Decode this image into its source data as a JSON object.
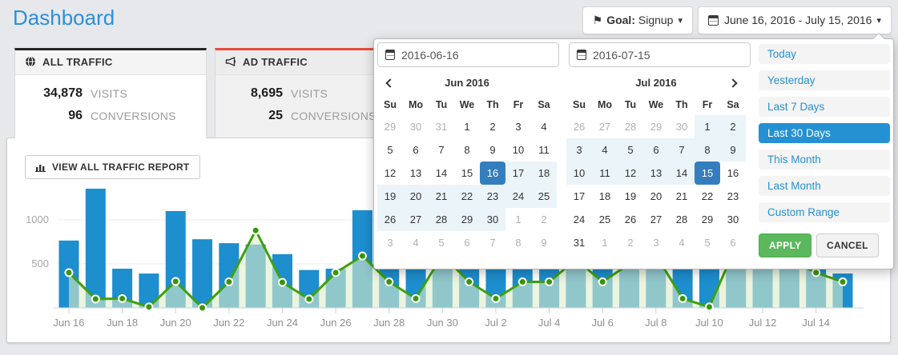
{
  "page": {
    "title": "Dashboard"
  },
  "header": {
    "goal_button": {
      "icon": "flag-icon",
      "label_prefix": "Goal:",
      "value": "Signup"
    },
    "date_range_button": {
      "icon": "calendar-icon",
      "label": "June 16, 2016 - July 15, 2016"
    }
  },
  "cards": [
    {
      "title": "ALL TRAFFIC",
      "icon": "globe-icon",
      "accent_color": "#262626",
      "stats": [
        {
          "value": "34,878",
          "label": "VISITS"
        },
        {
          "value": "96",
          "label": "CONVERSIONS"
        }
      ]
    },
    {
      "title": "AD TRAFFIC",
      "icon": "megaphone-icon",
      "accent_color": "#e74c3c",
      "stats": [
        {
          "value": "8,695",
          "label": "VISITS"
        },
        {
          "value": "25",
          "label": "CONVERSIONS"
        }
      ]
    }
  ],
  "report_button": {
    "icon": "bar-chart-icon",
    "label": "VIEW ALL TRAFFIC REPORT"
  },
  "chart_data": {
    "type": "bar+line",
    "x": [
      "Jun 16",
      "Jun 17",
      "Jun 18",
      "Jun 19",
      "Jun 20",
      "Jun 21",
      "Jun 22",
      "Jun 23",
      "Jun 24",
      "Jun 25",
      "Jun 26",
      "Jun 27",
      "Jun 28",
      "Jun 29",
      "Jun 30",
      "Jul 1",
      "Jul 2",
      "Jul 3",
      "Jul 4",
      "Jul 5",
      "Jul 6",
      "Jul 7",
      "Jul 8",
      "Jul 9",
      "Jul 10",
      "Jul 11",
      "Jul 12",
      "Jul 13",
      "Jul 14",
      "Jul 15"
    ],
    "xtick_every": 2,
    "yticks": [
      500,
      1000
    ],
    "ylim": [
      0,
      1450
    ],
    "grid": true,
    "legend": "none",
    "series": [
      {
        "name": "visits",
        "type": "bar",
        "color": "#1d8ece",
        "values": [
          765,
          1355,
          445,
          390,
          1100,
          780,
          735,
          720,
          610,
          430,
          445,
          1110,
          800,
          650,
          900,
          750,
          850,
          700,
          950,
          820,
          620,
          860,
          760,
          900,
          720,
          780,
          830,
          880,
          800,
          390
        ]
      },
      {
        "name": "conversions",
        "type": "line",
        "color": "#3fa00e",
        "area_color": "rgba(222,237,202,0.6)",
        "marker": "circle",
        "values": [
          400,
          100,
          105,
          10,
          300,
          0,
          295,
          880,
          290,
          100,
          400,
          590,
          295,
          105,
          600,
          295,
          105,
          295,
          295,
          550,
          295,
          500,
          600,
          105,
          10,
          700,
          650,
          550,
          400,
          295
        ]
      }
    ]
  },
  "datepicker": {
    "start_input": "2016-06-16",
    "end_input": "2016-07-15",
    "weekdays": [
      "Su",
      "Mo",
      "Tu",
      "We",
      "Th",
      "Fr",
      "Sa"
    ],
    "calendars": [
      {
        "month": "Jun 2016",
        "nav": "prev",
        "days": [
          "29|m",
          "30|m",
          "31|m",
          "1",
          "2",
          "3",
          "4",
          "5",
          "6",
          "7",
          "8",
          "9",
          "10",
          "11",
          "12",
          "13",
          "14",
          "15",
          "16|s",
          "17|r",
          "18|r",
          "19|r",
          "20|r",
          "21|r",
          "22|r",
          "23|r",
          "24|r",
          "25|r",
          "26|r",
          "27|r",
          "28|r",
          "29|r",
          "30|r",
          "1|m",
          "2|m",
          "3|m",
          "4|m",
          "5|m",
          "6|m",
          "7|m",
          "8|m",
          "9|m"
        ]
      },
      {
        "month": "Jul 2016",
        "nav": "next",
        "days": [
          "26|m",
          "27|m",
          "28|m",
          "29|m",
          "30|m",
          "1|r",
          "2|r",
          "3|r",
          "4|r",
          "5|r",
          "6|r",
          "7|r",
          "8|r",
          "9|r",
          "10|r",
          "11|r",
          "12|r",
          "13|r",
          "14|r",
          "15|s",
          "16",
          "17",
          "18",
          "19",
          "20",
          "21",
          "22",
          "23",
          "24",
          "25",
          "26",
          "27",
          "28",
          "29",
          "30",
          "31",
          "1|m",
          "2|m",
          "3|m",
          "4|m",
          "5|m",
          "6|m"
        ]
      }
    ],
    "ranges": [
      "Today",
      "Yesterday",
      "Last 7 Days",
      "Last 30 Days",
      "This Month",
      "Last Month",
      "Custom Range"
    ],
    "selected_range": "Last 30 Days",
    "apply_label": "APPLY",
    "cancel_label": "CANCEL",
    "selected_day_color": "#357ebd",
    "in_range_color": "#ebf4f8"
  }
}
